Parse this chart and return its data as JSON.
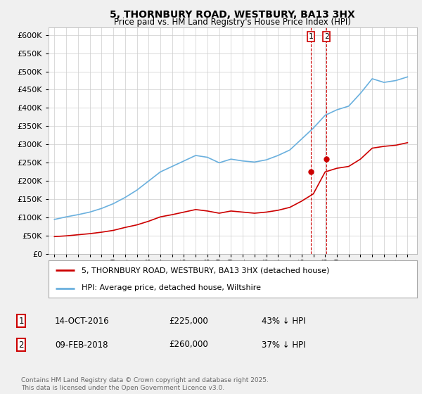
{
  "title": "5, THORNBURY ROAD, WESTBURY, BA13 3HX",
  "subtitle": "Price paid vs. HM Land Registry's House Price Index (HPI)",
  "hpi_label": "HPI: Average price, detached house, Wiltshire",
  "price_label": "5, THORNBURY ROAD, WESTBURY, BA13 3HX (detached house)",
  "transaction1_date": "14-OCT-2016",
  "transaction1_price": 225000,
  "transaction1_hpi_diff": "43% ↓ HPI",
  "transaction2_date": "09-FEB-2018",
  "transaction2_price": 260000,
  "transaction2_hpi_diff": "37% ↓ HPI",
  "footnote": "Contains HM Land Registry data © Crown copyright and database right 2025.\nThis data is licensed under the Open Government Licence v3.0.",
  "hpi_color": "#6ab0de",
  "price_color": "#cc0000",
  "vline_color": "#cc0000",
  "bg_color": "#f0f0f0",
  "plot_bg_color": "#ffffff",
  "grid_color": "#cccccc",
  "legend_border_color": "#aaaaaa",
  "ylim": [
    0,
    620000
  ],
  "yticks": [
    0,
    50000,
    100000,
    150000,
    200000,
    250000,
    300000,
    350000,
    400000,
    450000,
    500000,
    550000,
    600000
  ],
  "hpi_years": [
    1995,
    1996,
    1997,
    1998,
    1999,
    2000,
    2001,
    2002,
    2003,
    2004,
    2005,
    2006,
    2007,
    2008,
    2009,
    2010,
    2011,
    2012,
    2013,
    2014,
    2015,
    2016,
    2017,
    2018,
    2019,
    2020,
    2021,
    2022,
    2023,
    2024,
    2025
  ],
  "hpi_values": [
    95000,
    102000,
    108000,
    115000,
    125000,
    138000,
    155000,
    175000,
    200000,
    225000,
    240000,
    255000,
    270000,
    265000,
    250000,
    260000,
    255000,
    252000,
    258000,
    270000,
    285000,
    315000,
    345000,
    380000,
    395000,
    405000,
    440000,
    480000,
    470000,
    475000,
    485000
  ],
  "price_years": [
    1995,
    1996,
    1997,
    1998,
    1999,
    2000,
    2001,
    2002,
    2003,
    2004,
    2005,
    2006,
    2007,
    2008,
    2009,
    2010,
    2011,
    2012,
    2013,
    2014,
    2015,
    2016,
    2017,
    2018,
    2019,
    2020,
    2021,
    2022,
    2023,
    2024,
    2025
  ],
  "price_values": [
    48000,
    50000,
    53000,
    56000,
    60000,
    65000,
    73000,
    80000,
    90000,
    102000,
    108000,
    115000,
    122000,
    118000,
    112000,
    118000,
    115000,
    112000,
    115000,
    120000,
    128000,
    145000,
    165000,
    225000,
    235000,
    240000,
    260000,
    290000,
    295000,
    298000,
    305000
  ],
  "transaction1_x": 2016.79,
  "transaction2_x": 2018.11,
  "transaction1_y": 225000,
  "transaction2_y": 260000,
  "xlim": [
    1994.5,
    2025.8
  ]
}
